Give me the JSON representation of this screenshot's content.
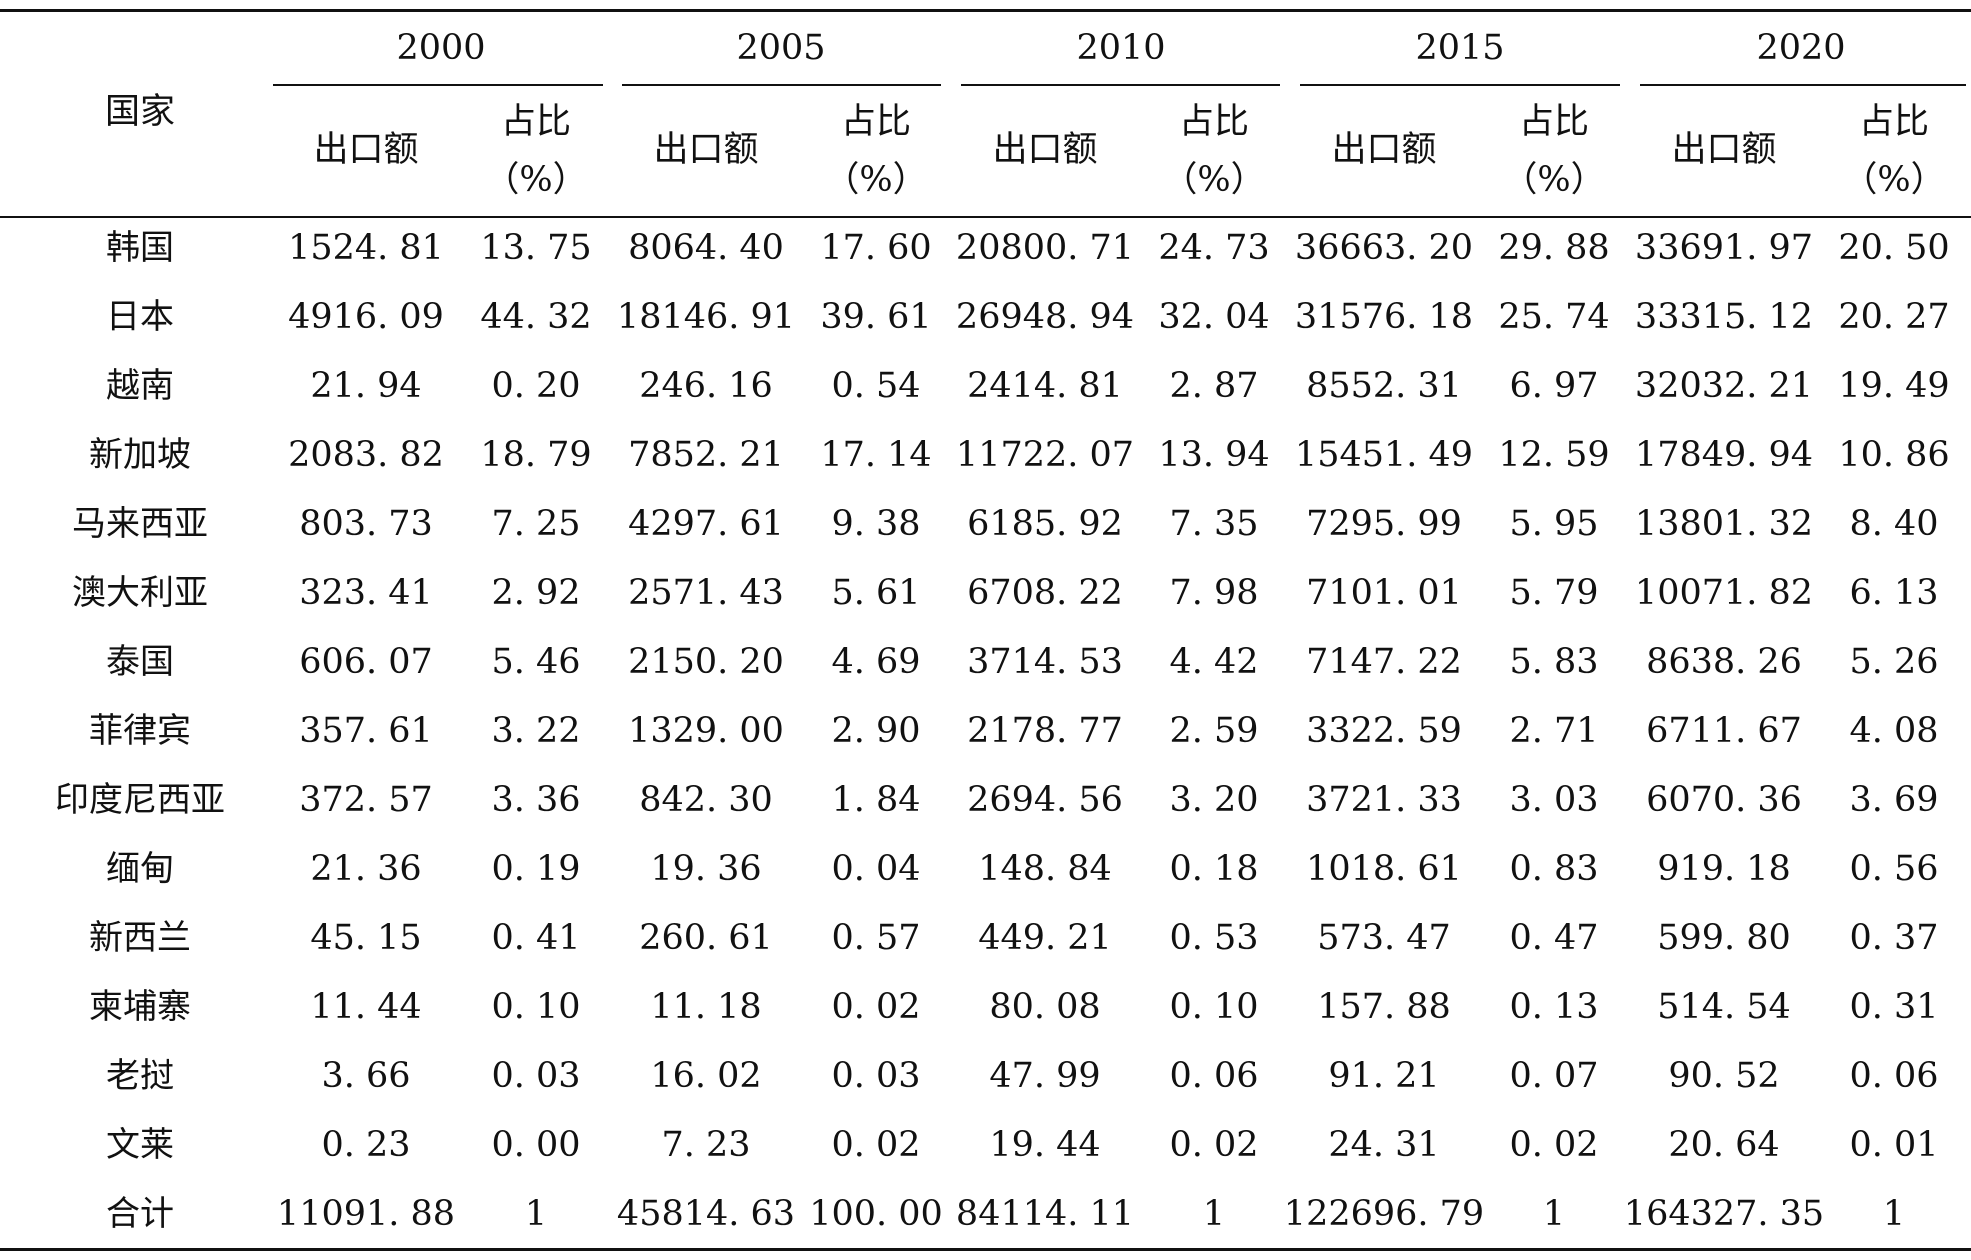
{
  "header": {
    "country_label": "国家",
    "years": [
      "2000",
      "2005",
      "2010",
      "2015",
      "2020"
    ],
    "export_label": "出口额",
    "share_label_line1": "占比",
    "share_label_line2": "（%）"
  },
  "rows": [
    {
      "country": "韩国",
      "cells": [
        "1524. 81",
        "13. 75",
        "8064. 40",
        "17. 60",
        "20800. 71",
        "24. 73",
        "36663. 20",
        "29. 88",
        "33691. 97",
        "20. 50"
      ]
    },
    {
      "country": "日本",
      "cells": [
        "4916. 09",
        "44. 32",
        "18146. 91",
        "39. 61",
        "26948. 94",
        "32. 04",
        "31576. 18",
        "25. 74",
        "33315. 12",
        "20. 27"
      ]
    },
    {
      "country": "越南",
      "cells": [
        "21. 94",
        "0. 20",
        "246. 16",
        "0. 54",
        "2414. 81",
        "2. 87",
        "8552. 31",
        "6. 97",
        "32032. 21",
        "19. 49"
      ]
    },
    {
      "country": "新加坡",
      "cells": [
        "2083. 82",
        "18. 79",
        "7852. 21",
        "17. 14",
        "11722. 07",
        "13. 94",
        "15451. 49",
        "12. 59",
        "17849. 94",
        "10. 86"
      ]
    },
    {
      "country": "马来西亚",
      "cells": [
        "803. 73",
        "7. 25",
        "4297. 61",
        "9. 38",
        "6185. 92",
        "7. 35",
        "7295. 99",
        "5. 95",
        "13801. 32",
        "8. 40"
      ]
    },
    {
      "country": "澳大利亚",
      "cells": [
        "323. 41",
        "2. 92",
        "2571. 43",
        "5. 61",
        "6708. 22",
        "7. 98",
        "7101. 01",
        "5. 79",
        "10071. 82",
        "6. 13"
      ]
    },
    {
      "country": "泰国",
      "cells": [
        "606. 07",
        "5. 46",
        "2150. 20",
        "4. 69",
        "3714. 53",
        "4. 42",
        "7147. 22",
        "5. 83",
        "8638. 26",
        "5. 26"
      ]
    },
    {
      "country": "菲律宾",
      "cells": [
        "357. 61",
        "3. 22",
        "1329. 00",
        "2. 90",
        "2178. 77",
        "2. 59",
        "3322. 59",
        "2. 71",
        "6711. 67",
        "4. 08"
      ]
    },
    {
      "country": "印度尼西亚",
      "cells": [
        "372. 57",
        "3. 36",
        "842. 30",
        "1. 84",
        "2694. 56",
        "3. 20",
        "3721. 33",
        "3. 03",
        "6070. 36",
        "3. 69"
      ]
    },
    {
      "country": "缅甸",
      "cells": [
        "21. 36",
        "0. 19",
        "19. 36",
        "0. 04",
        "148. 84",
        "0. 18",
        "1018. 61",
        "0. 83",
        "919. 18",
        "0. 56"
      ]
    },
    {
      "country": "新西兰",
      "cells": [
        "45. 15",
        "0. 41",
        "260. 61",
        "0. 57",
        "449. 21",
        "0. 53",
        "573. 47",
        "0. 47",
        "599. 80",
        "0. 37"
      ]
    },
    {
      "country": "柬埔寨",
      "cells": [
        "11. 44",
        "0. 10",
        "11. 18",
        "0. 02",
        "80. 08",
        "0. 10",
        "157. 88",
        "0. 13",
        "514. 54",
        "0. 31"
      ]
    },
    {
      "country": "老挝",
      "cells": [
        "3. 66",
        "0. 03",
        "16. 02",
        "0. 03",
        "47. 99",
        "0. 06",
        "91. 21",
        "0. 07",
        "90. 52",
        "0. 06"
      ]
    },
    {
      "country": "文莱",
      "cells": [
        "0. 23",
        "0. 00",
        "7. 23",
        "0. 02",
        "19. 44",
        "0. 02",
        "24. 31",
        "0. 02",
        "20. 64",
        "0. 01"
      ]
    },
    {
      "country": "合计",
      "cells": [
        "11091. 88",
        "1",
        "45814. 63",
        "100. 00",
        "84114. 11",
        "1",
        "122696. 79",
        "1",
        "164327. 35",
        "1"
      ]
    }
  ]
}
